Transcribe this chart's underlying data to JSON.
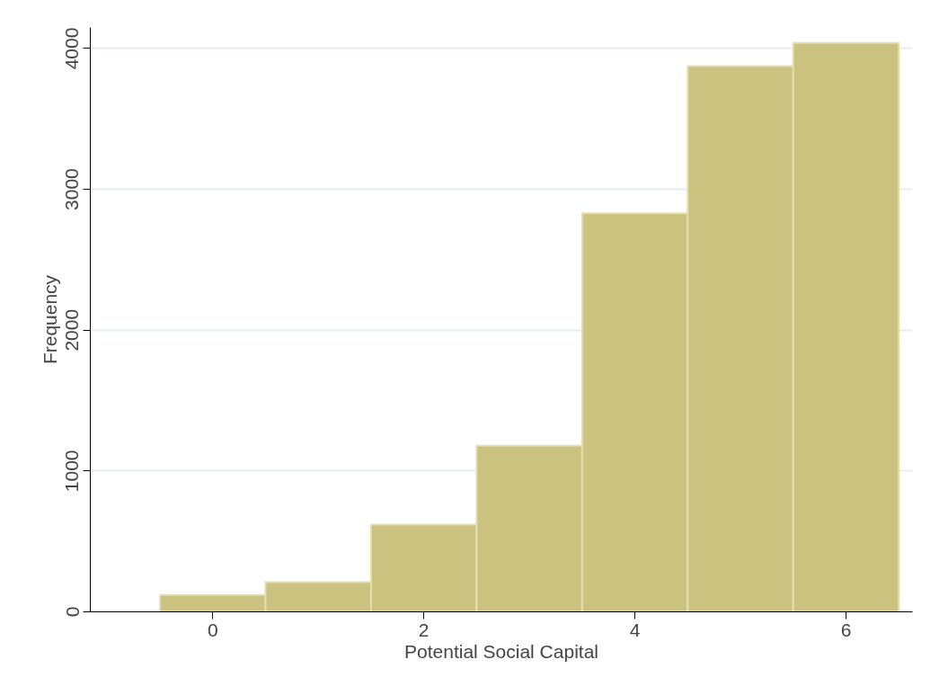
{
  "chart_data": {
    "type": "histogram",
    "xlabel": "Potential Social Capital",
    "ylabel": "Frequency",
    "bins": [
      -0.5,
      0.5,
      1.5,
      2.5,
      3.5,
      4.5,
      5.5,
      6.5
    ],
    "values": [
      120,
      211,
      620,
      1180,
      2830,
      3875,
      4040
    ],
    "color": "#cbc27f",
    "xlim": [
      -1.16,
      6.63
    ],
    "xticks": [
      0,
      2,
      4,
      6
    ],
    "ylim": [
      0,
      4150
    ],
    "yticks": [
      0,
      1000,
      2000,
      3000,
      4000
    ],
    "grid": "y"
  }
}
